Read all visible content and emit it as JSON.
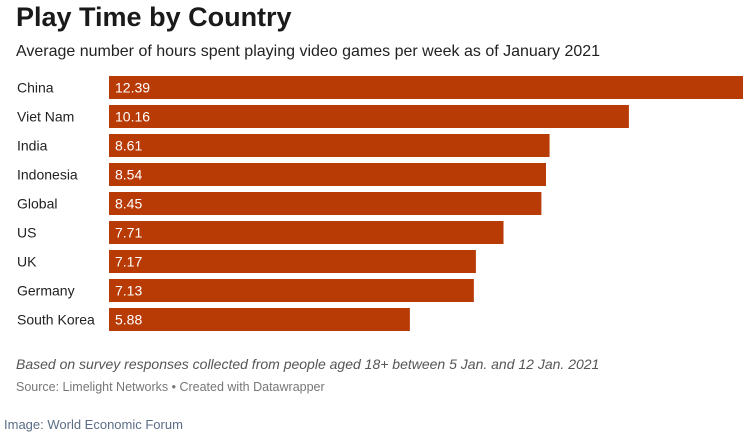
{
  "header": {
    "title": "Play Time by Country",
    "subtitle": "Average number of hours spent playing video games per week as of January 2021"
  },
  "footer": {
    "note": "Based on survey responses collected from people aged 18+ between 5 Jan. and 12 Jan. 2021",
    "source": "Source: Limelight Networks • Created with Datawrapper"
  },
  "image_credit": "Image: World Economic Forum",
  "colors": {
    "bar": "#b83a05",
    "bar_label": "#ffffff",
    "category_text": "#222222"
  },
  "chart_data": {
    "type": "bar",
    "orientation": "horizontal",
    "categories": [
      "China",
      "Viet Nam",
      "India",
      "Indonesia",
      "Global",
      "US",
      "UK",
      "Germany",
      "South Korea"
    ],
    "values": [
      12.39,
      10.16,
      8.61,
      8.54,
      8.45,
      7.71,
      7.17,
      7.13,
      5.88
    ],
    "value_labels": [
      "12.39",
      "10.16",
      "8.61",
      "8.54",
      "8.45",
      "7.71",
      "7.17",
      "7.13",
      "5.88"
    ],
    "xlim": [
      0,
      12.39
    ],
    "grid": false,
    "legend": "none"
  }
}
